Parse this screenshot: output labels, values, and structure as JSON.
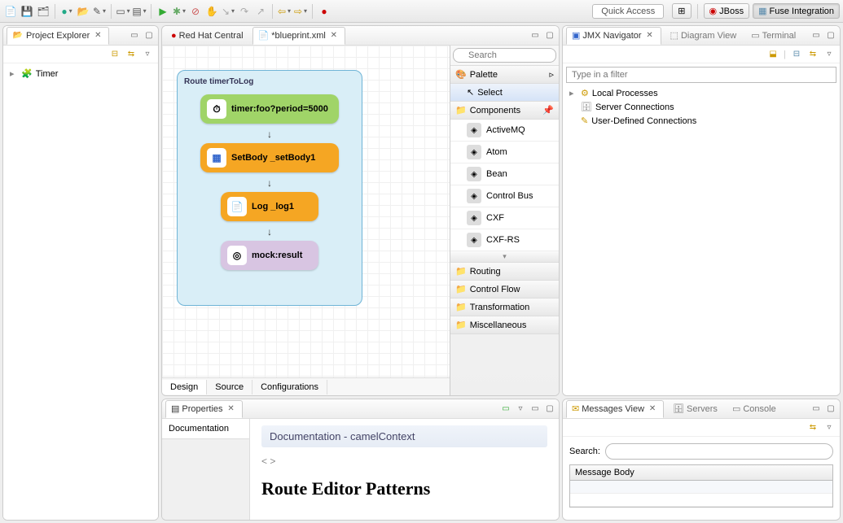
{
  "toolbar": {
    "quick_access": "Quick Access",
    "perspectives": [
      {
        "id": "open",
        "label": ""
      },
      {
        "id": "jboss",
        "label": "JBoss"
      },
      {
        "id": "fuse",
        "label": "Fuse Integration"
      }
    ]
  },
  "project_explorer": {
    "title": "Project Explorer",
    "items": [
      {
        "label": "Timer",
        "icon": "📁"
      }
    ]
  },
  "editor": {
    "tabs": [
      {
        "label": "Red Hat Central",
        "active": false,
        "closable": false,
        "icon": "🔴"
      },
      {
        "label": "*blueprint.xml",
        "active": true,
        "closable": true,
        "icon": "📄"
      }
    ],
    "bottom_tabs": [
      {
        "label": "Design",
        "active": true
      },
      {
        "label": "Source",
        "active": false
      },
      {
        "label": "Configurations",
        "active": false
      }
    ],
    "route": {
      "title": "Route timerToLog",
      "box_bg": "#d9eef7",
      "box_border": "#6fb4d6",
      "nodes": [
        {
          "label": "timer:foo?period=5000",
          "bg": "#a0d468",
          "fg": "#333",
          "icon": "⏱",
          "narrow": false
        },
        {
          "label": "SetBody _setBody1",
          "bg": "#f5a623",
          "fg": "#333",
          "icon": "▦",
          "narrow": false
        },
        {
          "label": "Log _log1",
          "bg": "#f5a623",
          "fg": "#333",
          "icon": "📄",
          "narrow": true
        },
        {
          "label": "mock:result",
          "bg": "#d8c5e2",
          "fg": "#333",
          "icon": "◎",
          "narrow": true
        }
      ]
    },
    "palette": {
      "search_placeholder": "Search",
      "title": "Palette",
      "select_label": "Select",
      "sections": {
        "components": {
          "label": "Components",
          "items": [
            "ActiveMQ",
            "Atom",
            "Bean",
            "Control Bus",
            "CXF",
            "CXF-RS"
          ]
        },
        "others": [
          "Routing",
          "Control Flow",
          "Transformation",
          "Miscellaneous"
        ]
      }
    }
  },
  "jmx": {
    "tabs": [
      {
        "label": "JMX Navigator",
        "active": true,
        "icon": "▣",
        "closable": true
      },
      {
        "label": "Diagram View",
        "active": false,
        "icon": "⬚",
        "closable": false
      },
      {
        "label": "Terminal",
        "active": false,
        "icon": "▭",
        "closable": false
      }
    ],
    "filter_placeholder": "Type in a filter",
    "tree": [
      {
        "label": "Local Processes",
        "icon": "⚙",
        "expandable": true
      },
      {
        "label": "Server Connections",
        "icon": "🗄",
        "expandable": false
      },
      {
        "label": "User-Defined Connections",
        "icon": "✎",
        "expandable": false
      }
    ]
  },
  "properties": {
    "tab_label": "Properties",
    "side_items": [
      "Documentation"
    ],
    "title": "Documentation - camelContext",
    "nav": "<  >",
    "heading": "Route Editor Patterns"
  },
  "messages": {
    "tabs": [
      {
        "label": "Messages View",
        "active": true,
        "icon": "✉",
        "closable": true
      },
      {
        "label": "Servers",
        "active": false,
        "icon": "🗄",
        "closable": false
      },
      {
        "label": "Console",
        "active": false,
        "icon": "▭",
        "closable": false
      }
    ],
    "search_label": "Search:",
    "table_header": "Message Body"
  },
  "colors": {
    "node_green": "#a0d468",
    "node_orange": "#f5a623",
    "node_purple": "#d8c5e2"
  }
}
